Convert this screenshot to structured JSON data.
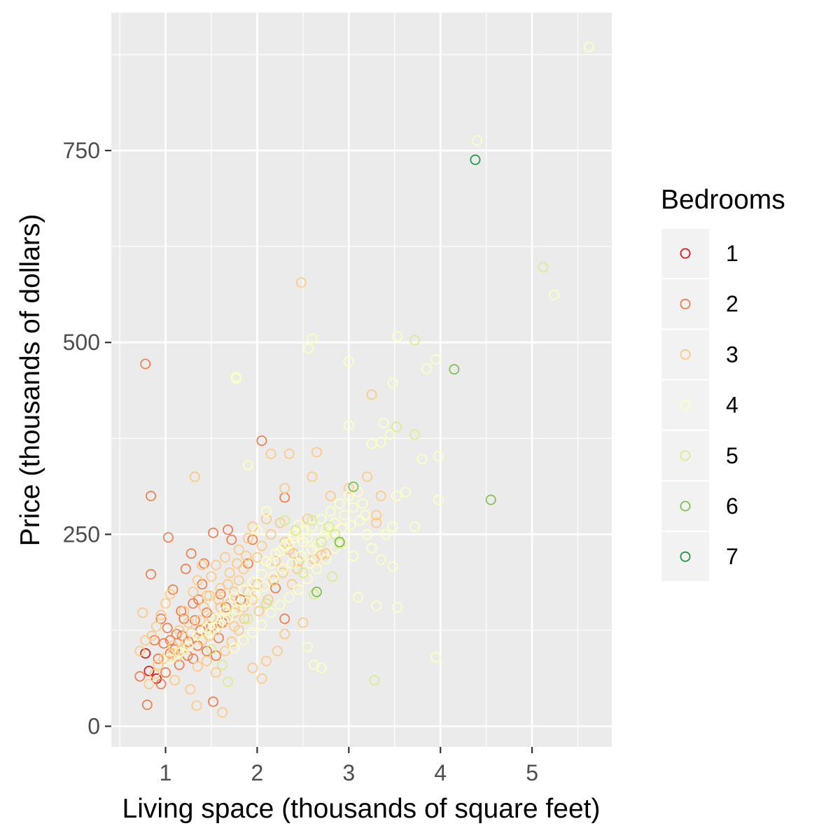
{
  "chart_data": {
    "type": "scatter",
    "xlabel": "Living space (thousands of square feet)",
    "ylabel": "Price (thousands of dollars)",
    "xlim": [
      0.45,
      5.9
    ],
    "ylim": [
      -28,
      920
    ],
    "x_ticks": [
      1,
      2,
      3,
      4,
      5
    ],
    "y_ticks": [
      0,
      250,
      500,
      750
    ],
    "grid": true,
    "legend": {
      "title": "Bedrooms",
      "position": "right",
      "entries": [
        "1",
        "2",
        "3",
        "4",
        "5",
        "6",
        "7"
      ]
    },
    "colors": {
      "1": "#d7191c",
      "2": "#f07c4a",
      "3": "#fec980",
      "4": "#ffffbf",
      "5": "#d7ed8c",
      "6": "#7ac04c",
      "7": "#1a9641"
    },
    "series": [
      {
        "name": "1",
        "points": [
          [
            0.78,
            95
          ],
          [
            0.82,
            72
          ],
          [
            0.9,
            62
          ]
        ]
      },
      {
        "name": "2",
        "points": [
          [
            0.78,
            472
          ],
          [
            0.84,
            300
          ],
          [
            0.84,
            198
          ],
          [
            1.03,
            246
          ],
          [
            0.8,
            28
          ],
          [
            0.72,
            65
          ],
          [
            0.92,
            88
          ],
          [
            0.95,
            55
          ],
          [
            1.0,
            70
          ],
          [
            1.05,
            95
          ],
          [
            1.12,
            120
          ],
          [
            1.2,
            140
          ],
          [
            1.25,
            110
          ],
          [
            1.3,
            160
          ],
          [
            1.35,
            105
          ],
          [
            1.4,
            185
          ],
          [
            1.45,
            98
          ],
          [
            1.5,
            130
          ],
          [
            1.08,
            178
          ],
          [
            1.17,
            150
          ],
          [
            1.22,
            205
          ],
          [
            1.28,
            225
          ],
          [
            1.36,
            165
          ],
          [
            1.42,
            212
          ],
          [
            1.52,
            252
          ],
          [
            1.6,
            172
          ],
          [
            1.68,
            256
          ],
          [
            1.72,
            243
          ],
          [
            1.82,
            165
          ],
          [
            1.9,
            212
          ],
          [
            1.95,
            243
          ],
          [
            2.05,
            372
          ],
          [
            2.1,
            160
          ],
          [
            2.2,
            180
          ],
          [
            2.3,
            140
          ],
          [
            2.3,
            298
          ],
          [
            1.52,
            32
          ],
          [
            1.15,
            80
          ],
          [
            1.32,
            138
          ],
          [
            0.98,
            108
          ],
          [
            1.02,
            128
          ],
          [
            1.1,
            100
          ],
          [
            1.18,
            118
          ],
          [
            1.24,
            92
          ],
          [
            1.3,
            88
          ],
          [
            1.38,
            125
          ],
          [
            1.45,
            148
          ],
          [
            1.55,
            92
          ],
          [
            1.62,
            135
          ],
          [
            0.88,
            112
          ],
          [
            0.95,
            140
          ],
          [
            1.58,
            115
          ],
          [
            1.66,
            155
          ],
          [
            1.05,
            112
          ]
        ]
      },
      {
        "name": "3",
        "points": [
          [
            1.32,
            325
          ],
          [
            2.48,
            578
          ],
          [
            2.6,
            325
          ],
          [
            2.65,
            357
          ],
          [
            2.55,
            270
          ],
          [
            2.62,
            218
          ],
          [
            2.35,
            355
          ],
          [
            2.3,
            310
          ],
          [
            2.15,
            355
          ],
          [
            3.25,
            432
          ],
          [
            3.3,
            275
          ],
          [
            3.3,
            265
          ],
          [
            3.2,
            325
          ],
          [
            3.35,
            300
          ],
          [
            3.0,
            310
          ],
          [
            2.8,
            300
          ],
          [
            2.9,
            240
          ],
          [
            2.75,
            225
          ],
          [
            2.7,
            223
          ],
          [
            2.5,
            135
          ],
          [
            2.3,
            120
          ],
          [
            2.22,
            98
          ],
          [
            2.05,
            62
          ],
          [
            2.1,
            85
          ],
          [
            1.95,
            76
          ],
          [
            1.62,
            18
          ],
          [
            1.34,
            27
          ],
          [
            1.27,
            48
          ],
          [
            1.1,
            60
          ],
          [
            0.75,
            148
          ],
          [
            0.72,
            98
          ],
          [
            0.78,
            112
          ],
          [
            0.85,
            118
          ],
          [
            0.9,
            130
          ],
          [
            0.95,
            145
          ],
          [
            1.0,
            160
          ],
          [
            1.05,
            172
          ],
          [
            1.08,
            105
          ],
          [
            1.12,
            90
          ],
          [
            1.15,
            125
          ],
          [
            1.2,
            150
          ],
          [
            1.25,
            135
          ],
          [
            1.3,
            175
          ],
          [
            1.35,
            190
          ],
          [
            1.4,
            210
          ],
          [
            1.45,
            170
          ],
          [
            1.5,
            195
          ],
          [
            1.55,
            210
          ],
          [
            1.6,
            180
          ],
          [
            1.65,
            220
          ],
          [
            1.7,
            200
          ],
          [
            1.75,
            175
          ],
          [
            1.8,
            230
          ],
          [
            1.85,
            205
          ],
          [
            1.9,
            245
          ],
          [
            1.95,
            260
          ],
          [
            2.0,
            220
          ],
          [
            2.05,
            235
          ],
          [
            2.1,
            270
          ],
          [
            2.15,
            250
          ],
          [
            2.2,
            215
          ],
          [
            2.25,
            265
          ],
          [
            2.3,
            240
          ],
          [
            2.35,
            230
          ],
          [
            2.4,
            225
          ],
          [
            2.45,
            215
          ],
          [
            1.4,
            112
          ],
          [
            1.5,
            142
          ],
          [
            1.55,
            125
          ],
          [
            1.6,
            155
          ],
          [
            1.65,
            138
          ],
          [
            1.7,
            160
          ],
          [
            1.75,
            148
          ],
          [
            1.8,
            190
          ],
          [
            1.85,
            155
          ],
          [
            1.9,
            175
          ],
          [
            1.95,
            165
          ],
          [
            2.0,
            185
          ],
          [
            1.42,
            155
          ],
          [
            1.48,
            170
          ],
          [
            1.58,
            165
          ],
          [
            1.68,
            185
          ],
          [
            1.78,
            212
          ],
          [
            1.88,
            222
          ],
          [
            1.22,
            108
          ],
          [
            1.28,
            122
          ],
          [
            1.38,
            138
          ],
          [
            1.48,
            118
          ],
          [
            1.18,
            100
          ],
          [
            1.08,
            95
          ],
          [
            0.98,
            88
          ],
          [
            0.92,
            80
          ],
          [
            0.88,
            68
          ],
          [
            0.82,
            55
          ],
          [
            1.35,
            78
          ],
          [
            1.45,
            85
          ],
          [
            1.55,
            70
          ],
          [
            1.65,
            98
          ],
          [
            1.72,
            110
          ],
          [
            1.8,
            125
          ],
          [
            1.86,
            140
          ],
          [
            2.02,
            150
          ],
          [
            2.12,
            165
          ],
          [
            2.18,
            190
          ],
          [
            2.28,
            200
          ],
          [
            2.38,
            185
          ],
          [
            2.44,
            205
          ],
          [
            1.75,
            130
          ]
        ]
      },
      {
        "name": "4",
        "points": [
          [
            5.62,
            885
          ],
          [
            4.4,
            763
          ],
          [
            5.24,
            562
          ],
          [
            2.6,
            505
          ],
          [
            2.56,
            492
          ],
          [
            1.77,
            453
          ],
          [
            1.77,
            455
          ],
          [
            3.0,
            475
          ],
          [
            3.53,
            508
          ],
          [
            3.85,
            466
          ],
          [
            3.95,
            478
          ],
          [
            3.48,
            447
          ],
          [
            3.38,
            395
          ],
          [
            3.45,
            380
          ],
          [
            3.35,
            370
          ],
          [
            3.25,
            368
          ],
          [
            3.0,
            392
          ],
          [
            3.72,
            380
          ],
          [
            3.8,
            348
          ],
          [
            3.98,
            352
          ],
          [
            3.98,
            295
          ],
          [
            3.72,
            260
          ],
          [
            3.62,
            305
          ],
          [
            3.52,
            300
          ],
          [
            3.48,
            260
          ],
          [
            3.4,
            250
          ],
          [
            3.35,
            217
          ],
          [
            3.48,
            208
          ],
          [
            3.3,
            157
          ],
          [
            3.53,
            155
          ],
          [
            3.1,
            168
          ],
          [
            3.95,
            90
          ],
          [
            2.7,
            76
          ],
          [
            2.62,
            80
          ],
          [
            2.55,
            103
          ],
          [
            1.9,
            340
          ],
          [
            2.0,
            255
          ],
          [
            2.1,
            280
          ],
          [
            2.6,
            230
          ],
          [
            2.5,
            240
          ],
          [
            2.4,
            250
          ],
          [
            2.55,
            245
          ],
          [
            2.65,
            235
          ],
          [
            2.75,
            255
          ],
          [
            2.85,
            265
          ],
          [
            2.95,
            275
          ],
          [
            3.05,
            285
          ],
          [
            3.15,
            290
          ],
          [
            2.45,
            262
          ],
          [
            2.35,
            238
          ],
          [
            2.25,
            228
          ],
          [
            2.15,
            212
          ],
          [
            2.05,
            198
          ],
          [
            1.95,
            188
          ],
          [
            1.85,
            178
          ],
          [
            1.75,
            168
          ],
          [
            1.65,
            150
          ],
          [
            1.55,
            140
          ],
          [
            1.45,
            128
          ],
          [
            1.35,
            118
          ],
          [
            1.25,
            104
          ],
          [
            1.15,
            96
          ],
          [
            1.05,
            88
          ],
          [
            2.7,
            270
          ],
          [
            2.8,
            280
          ],
          [
            2.9,
            290
          ],
          [
            3.0,
            300
          ],
          [
            3.1,
            305
          ],
          [
            3.2,
            250
          ],
          [
            3.25,
            232
          ],
          [
            3.05,
            222
          ],
          [
            2.95,
            238
          ],
          [
            2.85,
            232
          ],
          [
            2.75,
            218
          ],
          [
            2.65,
            205
          ],
          [
            2.55,
            192
          ],
          [
            2.45,
            178
          ],
          [
            2.35,
            168
          ],
          [
            2.25,
            158
          ],
          [
            2.15,
            148
          ],
          [
            2.05,
            132
          ],
          [
            1.95,
            122
          ],
          [
            1.85,
            112
          ],
          [
            1.75,
            102
          ],
          [
            2.6,
            260
          ],
          [
            2.5,
            255
          ],
          [
            2.4,
            245
          ],
          [
            2.3,
            235
          ],
          [
            2.2,
            225
          ],
          [
            2.1,
            215
          ],
          [
            2.72,
            248
          ],
          [
            2.82,
            252
          ],
          [
            2.92,
            258
          ],
          [
            3.02,
            262
          ],
          [
            3.12,
            268
          ],
          [
            3.18,
            275
          ],
          [
            2.58,
            212
          ],
          [
            2.48,
            222
          ],
          [
            2.38,
            212
          ],
          [
            2.28,
            205
          ],
          [
            2.18,
            195
          ],
          [
            2.08,
            182
          ],
          [
            1.98,
            172
          ],
          [
            1.88,
            162
          ],
          [
            1.78,
            152
          ],
          [
            1.68,
            142
          ],
          [
            1.58,
            132
          ],
          [
            1.48,
            122
          ]
        ]
      },
      {
        "name": "5",
        "points": [
          [
            5.12,
            598
          ],
          [
            3.72,
            503
          ],
          [
            3.52,
            390
          ],
          [
            3.72,
            380
          ],
          [
            2.6,
            268
          ],
          [
            2.42,
            255
          ],
          [
            2.3,
            268
          ],
          [
            2.85,
            250
          ],
          [
            2.9,
            238
          ],
          [
            2.78,
            260
          ],
          [
            3.28,
            60
          ],
          [
            2.62,
            172
          ],
          [
            1.68,
            58
          ],
          [
            2.1,
            160
          ],
          [
            1.9,
            140
          ],
          [
            2.5,
            200
          ],
          [
            2.7,
            240
          ],
          [
            1.5,
            100
          ],
          [
            1.62,
            80
          ],
          [
            2.82,
            195
          ]
        ]
      },
      {
        "name": "6",
        "points": [
          [
            4.15,
            465
          ],
          [
            4.55,
            295
          ],
          [
            3.05,
            312
          ],
          [
            2.65,
            175
          ],
          [
            2.9,
            240
          ]
        ]
      },
      {
        "name": "7",
        "points": [
          [
            4.38,
            738
          ]
        ]
      }
    ]
  }
}
